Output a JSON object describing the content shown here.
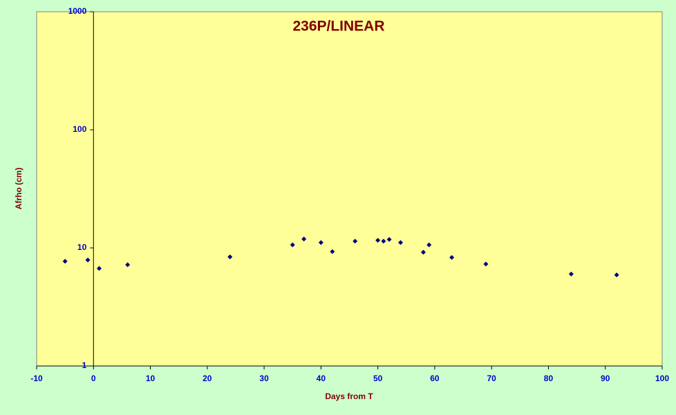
{
  "chart_data": {
    "type": "scatter",
    "title": "236P/LINEAR",
    "xlabel": "Days from T",
    "ylabel": "Afrho (cm)",
    "x": [
      -5,
      -1,
      1,
      6,
      24,
      35,
      37,
      40,
      42,
      46,
      50,
      51,
      52,
      54,
      58,
      59,
      63,
      69,
      84,
      92
    ],
    "values": [
      7.7,
      7.9,
      6.7,
      7.2,
      8.4,
      10.6,
      11.9,
      11.1,
      9.3,
      11.4,
      11.6,
      11.4,
      11.8,
      11.1,
      9.2,
      10.6,
      8.3,
      7.3,
      6.0,
      5.9
    ],
    "color": "#000080",
    "xlim": [
      -10,
      100
    ],
    "xticks": [
      -10,
      0,
      10,
      20,
      30,
      40,
      50,
      60,
      70,
      80,
      90,
      100
    ],
    "ylim": [
      1,
      1000
    ],
    "yticks": [
      1,
      10,
      100,
      1000
    ],
    "log_y": true
  }
}
